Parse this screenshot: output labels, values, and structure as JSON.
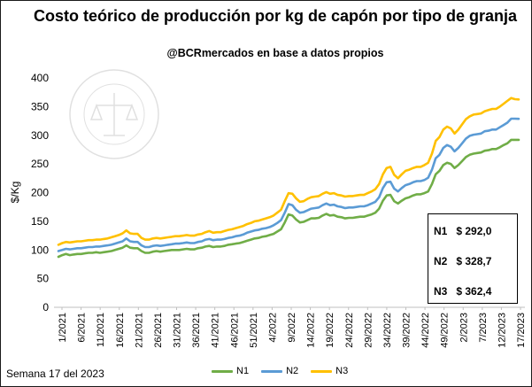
{
  "colors": {
    "N1": "#70ad47",
    "N2": "#5b9bd5",
    "N3": "#ffc000"
  },
  "legend": [
    {
      "name": "N1",
      "color": "#70ad47"
    },
    {
      "name": "N2",
      "color": "#5b9bd5"
    },
    {
      "name": "N3",
      "color": "#ffc000"
    }
  ],
  "footer_note": "Semana 17 del 2023",
  "annotations": [
    {
      "label": "N1",
      "value": "$ 292,0"
    },
    {
      "label": "N2",
      "value": "$ 328,7"
    },
    {
      "label": "N3",
      "value": "$ 362,4"
    }
  ],
  "chart_data": {
    "type": "line",
    "title": "Costo teórico de producción por kg de capón por tipo de granja",
    "subtitle": "@BCRmercados en base a datos propios",
    "ylabel": "$/Kg",
    "xlabel": "",
    "ylim": [
      0,
      400
    ],
    "yticks": [
      0,
      50,
      100,
      150,
      200,
      250,
      300,
      350,
      400
    ],
    "grid": false,
    "legend_position": "bottom",
    "tick_labels": [
      "1/2021",
      "6/2021",
      "11/2021",
      "16/2021",
      "21/2021",
      "26/2021",
      "31/2021",
      "36/2021",
      "41/2021",
      "46/2021",
      "51/2021",
      "4/2022",
      "9/2022",
      "14/2022",
      "19/2022",
      "24/2022",
      "29/2022",
      "34/2022",
      "39/2022",
      "44/2022",
      "49/2022",
      "2/2023",
      "7/2023",
      "12/2023",
      "17/2023"
    ],
    "series": [
      {
        "name": "N1",
        "values": [
          88,
          91,
          93,
          91,
          92,
          93,
          93,
          94,
          95,
          95,
          96,
          95,
          96,
          97,
          98,
          100,
          102,
          104,
          108,
          104,
          103,
          103,
          98,
          95,
          95,
          97,
          98,
          97,
          98,
          99,
          100,
          100,
          100,
          101,
          102,
          101,
          101,
          103,
          104,
          106,
          107,
          105,
          106,
          106,
          107,
          109,
          110,
          111,
          112,
          114,
          116,
          118,
          120,
          121,
          123,
          124,
          126,
          128,
          132,
          136,
          148,
          162,
          160,
          153,
          148,
          149,
          152,
          155,
          155,
          156,
          160,
          163,
          160,
          161,
          158,
          157,
          155,
          156,
          156,
          157,
          158,
          158,
          160,
          162,
          165,
          172,
          186,
          195,
          196,
          185,
          181,
          186,
          190,
          192,
          195,
          197,
          197,
          199,
          202,
          215,
          232,
          238,
          248,
          252,
          250,
          243,
          248,
          255,
          262,
          266,
          268,
          269,
          270,
          273,
          274,
          276,
          276,
          279,
          283,
          286,
          292,
          292,
          292
        ]
      },
      {
        "name": "N2",
        "values": [
          98,
          100,
          102,
          101,
          102,
          103,
          103,
          104,
          105,
          105,
          106,
          106,
          107,
          108,
          109,
          111,
          113,
          115,
          120,
          115,
          114,
          114,
          108,
          105,
          105,
          107,
          108,
          107,
          108,
          109,
          110,
          111,
          111,
          112,
          113,
          112,
          112,
          114,
          115,
          118,
          119,
          117,
          118,
          118,
          119,
          121,
          122,
          124,
          125,
          127,
          130,
          132,
          134,
          135,
          137,
          138,
          140,
          143,
          147,
          152,
          165,
          180,
          178,
          170,
          165,
          166,
          169,
          172,
          173,
          174,
          178,
          181,
          178,
          179,
          176,
          175,
          173,
          174,
          174,
          175,
          176,
          176,
          178,
          181,
          184,
          192,
          208,
          218,
          219,
          207,
          202,
          208,
          213,
          215,
          218,
          220,
          220,
          222,
          226,
          240,
          260,
          266,
          278,
          283,
          280,
          272,
          278,
          286,
          294,
          299,
          301,
          302,
          303,
          307,
          308,
          310,
          310,
          314,
          318,
          322,
          329,
          329,
          328.7
        ]
      },
      {
        "name": "N3",
        "values": [
          109,
          112,
          114,
          113,
          114,
          115,
          115,
          116,
          117,
          117,
          118,
          118,
          119,
          120,
          122,
          124,
          126,
          129,
          134,
          129,
          128,
          128,
          121,
          118,
          118,
          120,
          121,
          120,
          121,
          122,
          123,
          124,
          124,
          125,
          126,
          125,
          125,
          127,
          128,
          131,
          133,
          130,
          131,
          131,
          133,
          135,
          136,
          138,
          140,
          142,
          145,
          147,
          150,
          151,
          153,
          155,
          157,
          160,
          165,
          170,
          185,
          199,
          198,
          190,
          184,
          185,
          189,
          192,
          193,
          194,
          198,
          201,
          198,
          199,
          196,
          195,
          193,
          194,
          194,
          195,
          196,
          196,
          199,
          202,
          206,
          215,
          232,
          243,
          245,
          231,
          225,
          232,
          238,
          240,
          243,
          245,
          245,
          248,
          252,
          268,
          290,
          297,
          310,
          315,
          312,
          303,
          310,
          319,
          328,
          333,
          336,
          337,
          338,
          342,
          344,
          346,
          346,
          350,
          355,
          360,
          365,
          363,
          362.4
        ]
      }
    ]
  }
}
